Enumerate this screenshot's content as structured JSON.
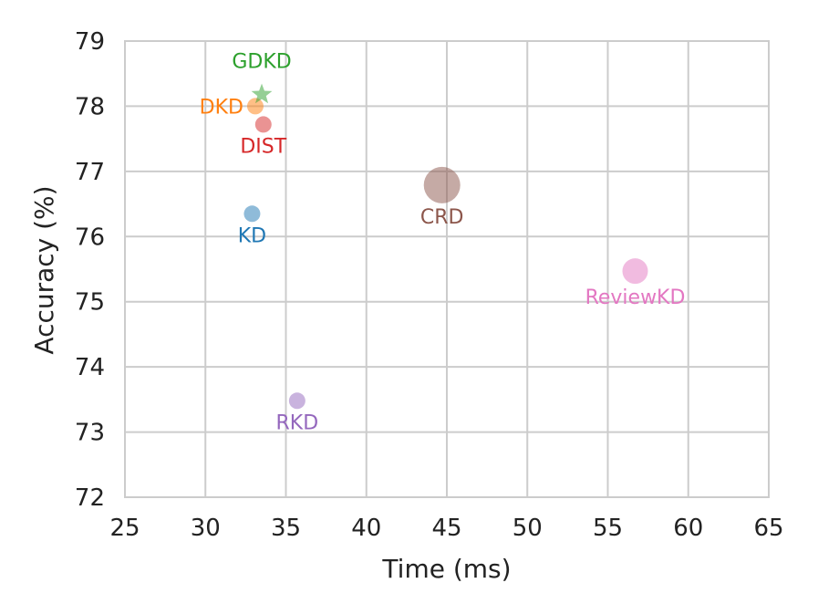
{
  "chart_data": {
    "type": "scatter",
    "title": "",
    "xlabel": "Time (ms)",
    "ylabel": "Accuracy (%)",
    "xlim": [
      25,
      65
    ],
    "ylim": [
      72,
      79
    ],
    "xticks": [
      25,
      30,
      35,
      40,
      45,
      50,
      55,
      60,
      65
    ],
    "yticks": [
      72,
      73,
      74,
      75,
      76,
      77,
      78,
      79
    ],
    "grid": true,
    "points": [
      {
        "name": "KD",
        "x": 32.9,
        "y": 76.35,
        "size": "small",
        "color": "#1f77b4",
        "marker": "circle",
        "label_position": "below"
      },
      {
        "name": "DKD",
        "x": 33.1,
        "y": 78.0,
        "size": "small",
        "color": "#ff7f0e",
        "marker": "circle",
        "label_position": "left"
      },
      {
        "name": "DIST",
        "x": 33.6,
        "y": 77.72,
        "size": "small",
        "color": "#d62728",
        "marker": "circle",
        "label_position": "below"
      },
      {
        "name": "GDKD",
        "x": 33.5,
        "y": 78.18,
        "size": "small",
        "color": "#2ca02c",
        "marker": "star",
        "label_position": "above"
      },
      {
        "name": "RKD",
        "x": 35.7,
        "y": 73.48,
        "size": "small",
        "color": "#9467bd",
        "marker": "circle",
        "label_position": "below"
      },
      {
        "name": "CRD",
        "x": 44.7,
        "y": 76.79,
        "size": "large",
        "color": "#8c564b",
        "marker": "circle",
        "label_position": "below"
      },
      {
        "name": "ReviewKD",
        "x": 56.7,
        "y": 75.47,
        "size": "medium",
        "color": "#e377c2",
        "marker": "circle",
        "label_position": "below"
      }
    ]
  }
}
